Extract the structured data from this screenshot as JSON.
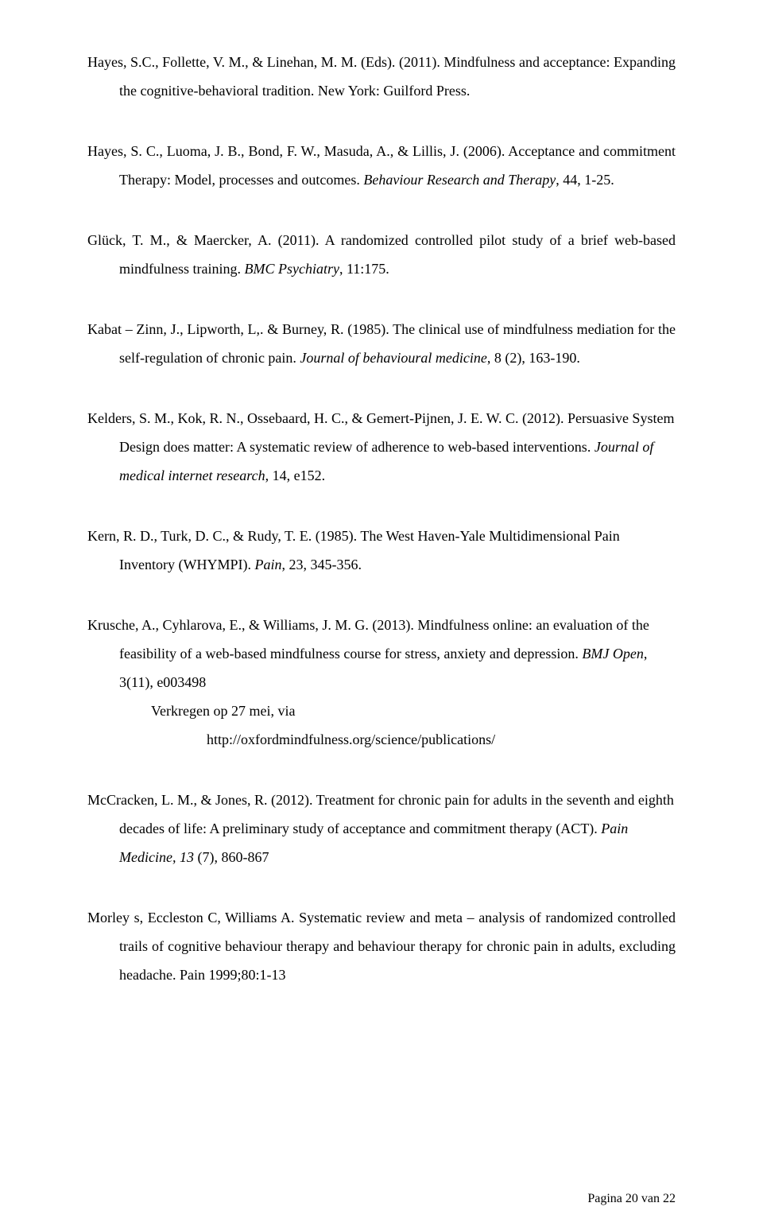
{
  "refs": {
    "r1": {
      "part1": "Hayes, S.C., Follette, V. M., & Linehan, M. M. (Eds). (2011). Mindfulness and acceptance: Expanding the cognitive-behavioral tradition. New York: Guilford Press."
    },
    "r2": {
      "part1": "Hayes, S. C., Luoma, J. B., Bond, F. W., Masuda, A., & Lillis, J. (2006). Acceptance and commitment Therapy: Model, processes and outcomes. ",
      "italic1": "Behaviour Research and Therapy",
      "part2": ", 44, 1-25."
    },
    "r3": {
      "part1": "Glück, T. M., & Maercker, A. (2011). A randomized controlled pilot study of a brief web-based mindfulness training. ",
      "italic1": "BMC Psychiatry",
      "part2": ", 11:175."
    },
    "r4": {
      "part1": "Kabat – Zinn, J., Lipworth, L,. & Burney, R. (1985). The clinical use of mindfulness mediation for the self-regulation of chronic pain. ",
      "italic1": "Journal of behavioural medicine",
      "part2": ", 8 (2), 163-190."
    },
    "r5": {
      "part1": "Kelders, S. M., Kok, R. N., Ossebaard, H. C., & Gemert-Pijnen, J. E. W. C. (2012). Persuasive System Design does matter: A systematic review of adherence to web-based interventions. ",
      "italic1": "Journal of medical internet research",
      "part2": ", 14, e152."
    },
    "r6": {
      "part1": "Kern, R. D., Turk, D. C., & Rudy, T. E. (1985). The West Haven-Yale Multidimensional Pain Inventory (WHYMPI). ",
      "italic1": "Pain",
      "part2": ", 23, 345-356."
    },
    "r7": {
      "part1": "Krusche, A., Cyhlarova, E., & Williams, J. M. G. (2013). Mindfulness online: an evaluation of the feasibility of a web-based mindfulness course for stress, anxiety and depression. ",
      "italic1": "BMJ Open",
      "part2": ", 3(11), e003498",
      "retrieved": "Verkregen op 27 mei, via",
      "url": "http://oxfordmindfulness.org/science/publications/"
    },
    "r8": {
      "part1": "McCracken, L. M., & Jones, R. (2012). Treatment for chronic pain for adults in the seventh and eighth decades of life: A preliminary study of acceptance and commitment therapy (ACT). ",
      "italic1": "Pain Medicine, 13",
      "part2": " (7), 860-867"
    },
    "r9": {
      "part1": "Morley s, Eccleston C, Williams A. Systematic review and meta – analysis of randomized controlled trails of cognitive behaviour therapy and behaviour therapy for chronic pain in adults, excluding headache. Pain 1999;80:1-13"
    }
  },
  "footer": "Pagina 20 van 22"
}
